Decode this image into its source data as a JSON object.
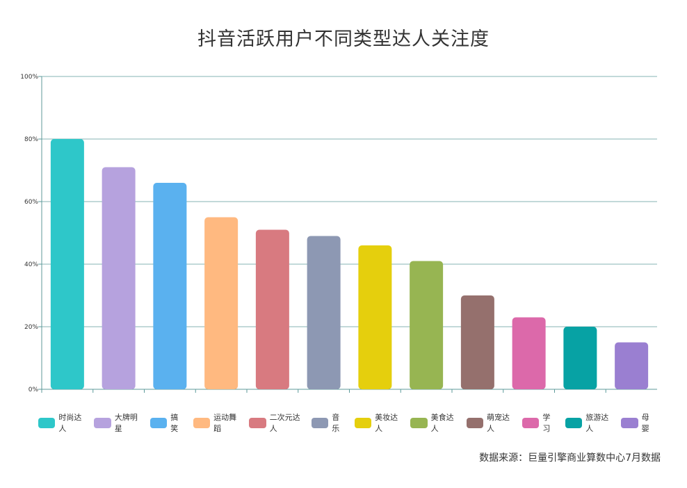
{
  "chart_data": {
    "type": "bar",
    "title": "抖音活跃用户不同类型达人关注度",
    "categories": [
      "时尚达人",
      "大牌明星",
      "搞笑",
      "运动舞蹈",
      "二次元达人",
      "音乐",
      "美妆达人",
      "美食达人",
      "萌宠达人",
      "学习",
      "旅游达人",
      "母婴"
    ],
    "values": [
      80,
      71,
      66,
      55,
      51,
      49,
      46,
      41,
      30,
      23,
      20,
      15
    ],
    "colors": [
      "#2ec7c9",
      "#b6a2de",
      "#5ab1ef",
      "#ffb980",
      "#d87a80",
      "#8d98b3",
      "#e5cf0d",
      "#97b552",
      "#95706d",
      "#dc69aa",
      "#07a2a4",
      "#9a7fd1"
    ],
    "ylim": [
      0,
      100
    ],
    "y_ticks": [
      "0%",
      "20%",
      "40%",
      "60%",
      "80%",
      "100%"
    ],
    "y_tick_values": [
      0,
      20,
      40,
      60,
      80,
      100
    ],
    "grid": true,
    "legend_placement": "bottom"
  },
  "source_note": "数据来源：巨量引擎商业算数中心7月数据",
  "axis_color": "#5c9a9a"
}
